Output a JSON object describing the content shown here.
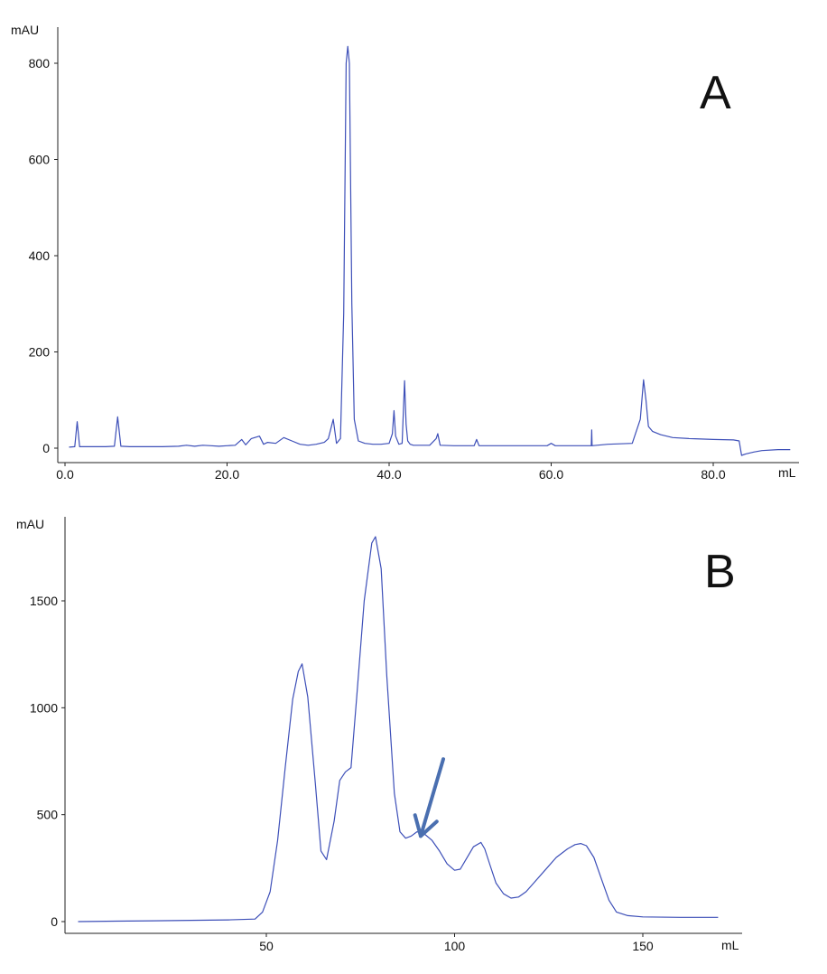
{
  "colors": {
    "trace": "#3d4fb8",
    "arrow": "#4a6fb0",
    "axis": "#222222"
  },
  "chart_data": [
    {
      "type": "line",
      "panel_label": "A",
      "ylabel": "mAU",
      "xlabel": "mL",
      "xlim": [
        -0.5,
        90
      ],
      "ylim": [
        -20,
        870
      ],
      "xticks": [
        0,
        20,
        40,
        60,
        80
      ],
      "xtick_labels": [
        "0.0",
        "20.0",
        "40.0",
        "60.0",
        "80.0"
      ],
      "yticks": [
        0,
        200,
        400,
        600,
        800
      ],
      "ytick_labels": [
        "0",
        "200",
        "400",
        "600",
        "800"
      ],
      "grid": false,
      "series": [
        {
          "x": [
            0.5,
            1.2,
            1.5,
            1.8,
            3.0,
            5.0,
            6.1,
            6.5,
            6.9,
            8.0,
            12.0,
            14.0,
            15.0,
            16.0,
            17.0,
            18.0,
            19.0,
            20.0,
            21.0,
            21.8,
            22.3,
            23.0,
            24.0,
            24.5,
            25.0,
            26.0,
            27.0,
            28.0,
            29.0,
            30.0,
            31.0,
            32.0,
            32.5,
            32.8,
            33.1,
            33.5,
            34.0,
            34.4,
            34.7,
            34.9,
            35.1,
            35.4,
            35.7,
            36.2,
            37.0,
            38.0,
            39.0,
            40.0,
            40.4,
            40.6,
            40.8,
            41.2,
            41.6,
            41.9,
            42.1,
            42.3,
            42.6,
            43.0,
            45.0,
            45.8,
            46.0,
            46.3,
            48.0,
            50.5,
            50.8,
            51.1,
            53.0,
            56.0,
            59.5,
            60.0,
            60.5,
            62.0,
            64.0,
            64.95,
            65.0,
            65.05,
            67.0,
            70.0,
            71.0,
            71.4,
            71.7,
            72.0,
            72.5,
            73.5,
            75.0,
            77.0,
            80.0,
            82.5,
            83.2,
            83.5,
            84.0,
            85.0,
            86.0,
            88.0,
            89.5
          ],
          "y": [
            2,
            3,
            55,
            3,
            3,
            3,
            4,
            65,
            4,
            3,
            3,
            4,
            6,
            4,
            6,
            5,
            4,
            5,
            6,
            18,
            7,
            20,
            25,
            8,
            12,
            10,
            22,
            15,
            8,
            6,
            8,
            12,
            20,
            40,
            60,
            10,
            20,
            280,
            800,
            835,
            800,
            300,
            60,
            15,
            10,
            8,
            8,
            10,
            30,
            78,
            25,
            8,
            10,
            140,
            50,
            15,
            8,
            6,
            6,
            20,
            30,
            6,
            5,
            5,
            18,
            5,
            5,
            5,
            5,
            10,
            5,
            5,
            5,
            5,
            38,
            5,
            8,
            10,
            60,
            142,
            100,
            45,
            35,
            28,
            22,
            20,
            18,
            17,
            15,
            -15,
            -12,
            -8,
            -5,
            -3,
            -3
          ]
        }
      ]
    },
    {
      "type": "line",
      "panel_label": "B",
      "ylabel": "mAU",
      "xlabel": "mL",
      "xlim": [
        -3,
        172
      ],
      "ylim": [
        -30,
        1830
      ],
      "xticks": [
        50,
        100,
        150
      ],
      "xtick_labels": [
        "50",
        "100",
        "150"
      ],
      "yticks": [
        0,
        500,
        1000,
        1500
      ],
      "ytick_labels": [
        "0",
        "500",
        "1000",
        "1500"
      ],
      "grid": false,
      "series": [
        {
          "x": [
            0,
            10,
            20,
            30,
            40,
            47,
            49,
            51,
            53,
            55,
            57,
            58.5,
            59.5,
            61,
            63,
            64.5,
            66,
            68,
            69.5,
            71,
            72.5,
            74,
            76,
            78,
            79,
            80.5,
            82,
            84,
            85.5,
            87,
            88.5,
            90,
            92,
            94,
            96,
            98,
            100,
            101.5,
            103,
            105,
            107,
            108,
            109.5,
            111,
            113,
            115,
            117,
            119,
            121,
            124,
            127,
            130,
            132,
            133.5,
            135,
            137,
            139,
            141,
            143,
            146,
            150,
            160,
            170
          ],
          "y": [
            0,
            2,
            4,
            6,
            8,
            12,
            45,
            140,
            380,
            720,
            1040,
            1170,
            1205,
            1050,
            650,
            330,
            290,
            470,
            660,
            700,
            720,
            1050,
            1500,
            1770,
            1800,
            1650,
            1150,
            600,
            420,
            390,
            400,
            420,
            410,
            380,
            330,
            270,
            240,
            245,
            290,
            350,
            370,
            340,
            260,
            180,
            130,
            110,
            115,
            140,
            180,
            240,
            300,
            340,
            360,
            365,
            355,
            300,
            200,
            100,
            45,
            28,
            22,
            20,
            20
          ]
        }
      ],
      "arrow": {
        "from": [
          97,
          760
        ],
        "to": [
          91,
          400
        ]
      }
    }
  ]
}
